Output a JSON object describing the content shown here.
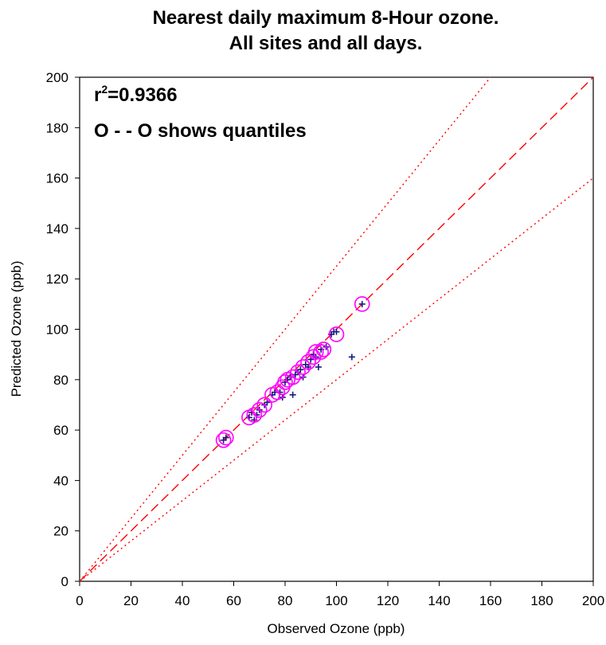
{
  "chart_data": {
    "type": "scatter",
    "title": [
      "Nearest daily maximum 8-Hour ozone.",
      "All sites and all days."
    ],
    "xlabel": "Observed Ozone (ppb)",
    "ylabel": "Predicted Ozone (ppb)",
    "xlim": [
      0,
      200
    ],
    "ylim": [
      0,
      200
    ],
    "xticks": [
      0,
      20,
      40,
      60,
      80,
      100,
      120,
      140,
      160,
      180,
      200
    ],
    "yticks": [
      0,
      20,
      40,
      60,
      80,
      100,
      120,
      140,
      160,
      180,
      200
    ],
    "grid": false,
    "annotations": {
      "r2_prefix": "r",
      "r2_sup": "2",
      "r2_value": "=0.9366",
      "quantiles_note": "O - - O shows quantiles"
    },
    "colors": {
      "points": "#1a1a80",
      "quantiles": "#ff00ff",
      "reference_lines": "#ff0000"
    },
    "reference_lines": [
      {
        "style": "dashed",
        "slope": 1.0
      },
      {
        "style": "dotted",
        "slope": 1.25
      },
      {
        "style": "dotted",
        "slope": 0.8
      }
    ],
    "series": [
      {
        "marker": "plus",
        "points": [
          [
            56,
            56
          ],
          [
            57,
            57
          ],
          [
            66,
            65
          ],
          [
            67,
            67
          ],
          [
            68,
            64
          ],
          [
            69,
            66
          ],
          [
            70,
            68
          ],
          [
            72,
            70
          ],
          [
            73,
            71
          ],
          [
            75,
            74
          ],
          [
            76,
            75
          ],
          [
            78,
            75
          ],
          [
            79,
            73
          ],
          [
            80,
            79
          ],
          [
            81,
            80
          ],
          [
            82,
            81
          ],
          [
            83,
            74
          ],
          [
            84,
            82
          ],
          [
            85,
            83
          ],
          [
            86,
            84
          ],
          [
            87,
            81
          ],
          [
            88,
            86
          ],
          [
            89,
            85
          ],
          [
            90,
            88
          ],
          [
            91,
            90
          ],
          [
            92,
            89
          ],
          [
            93,
            85
          ],
          [
            94,
            92
          ],
          [
            96,
            93
          ],
          [
            98,
            98
          ],
          [
            99,
            99
          ],
          [
            100,
            99
          ],
          [
            106,
            89
          ],
          [
            110,
            110
          ]
        ]
      },
      {
        "marker": "circle",
        "points": [
          [
            56,
            56
          ],
          [
            57,
            57
          ],
          [
            66,
            65
          ],
          [
            68,
            66
          ],
          [
            70,
            68
          ],
          [
            72,
            70
          ],
          [
            75,
            74
          ],
          [
            77,
            75
          ],
          [
            79,
            77
          ],
          [
            80,
            79
          ],
          [
            81,
            80
          ],
          [
            83,
            81
          ],
          [
            85,
            83
          ],
          [
            87,
            85
          ],
          [
            89,
            87
          ],
          [
            91,
            89
          ],
          [
            92,
            91
          ],
          [
            94,
            91
          ],
          [
            95,
            92
          ],
          [
            100,
            98
          ],
          [
            110,
            110
          ]
        ]
      }
    ]
  }
}
